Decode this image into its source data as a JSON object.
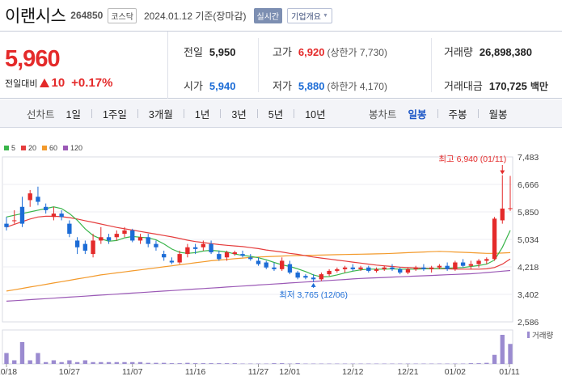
{
  "header": {
    "name": "이랜시스",
    "code": "264850",
    "market": "코스닥",
    "date_text": "2024.01.12 기준(장마감)",
    "realtime": "실시간",
    "company_info": "기업개요"
  },
  "price": {
    "current": "5,960",
    "change_label": "전일대비",
    "change_amount": "10",
    "change_pct": "+0.17%"
  },
  "stats": {
    "prev_close": {
      "label": "전일",
      "value": "5,950"
    },
    "high": {
      "label": "고가",
      "value": "6,920",
      "sub": "(상한가 7,730)"
    },
    "volume": {
      "label": "거래량",
      "value": "26,898,380"
    },
    "open": {
      "label": "시가",
      "value": "5,940"
    },
    "low": {
      "label": "저가",
      "value": "5,880",
      "sub": "(하한가 4,170)"
    },
    "amount": {
      "label": "거래대금",
      "value": "170,725",
      "unit": "백만"
    }
  },
  "tabs": {
    "line_label": "선차트",
    "line_tabs": [
      "1일",
      "1주일",
      "3개월",
      "1년",
      "3년",
      "5년",
      "10년"
    ],
    "candle_label": "봉차트",
    "candle_tabs": [
      "일봉",
      "주봉",
      "월봉"
    ],
    "active_candle": "일봉"
  },
  "colors": {
    "up": "#e42a2a",
    "down": "#1c6cd6",
    "ma5": "#39b54a",
    "ma20": "#e53d3d",
    "ma60": "#f39a2b",
    "ma120": "#9b59b6"
  },
  "chart_data": {
    "type": "candlestick",
    "legend": [
      {
        "name": "5",
        "color": "#39b54a"
      },
      {
        "name": "20",
        "color": "#e53d3d"
      },
      {
        "name": "60",
        "color": "#f39a2b"
      },
      {
        "name": "120",
        "color": "#9b59b6"
      }
    ],
    "y_ticks": [
      "7,483",
      "6,666",
      "5,850",
      "5,034",
      "4,218",
      "3,402",
      "2,586"
    ],
    "ylim": [
      2586,
      7483
    ],
    "x_ticks": [
      "10/18",
      "10/27",
      "11/07",
      "11/16",
      "11/27",
      "12/01",
      "12/12",
      "12/21",
      "01/02",
      "01/11"
    ],
    "high_annotation": "최고 6,940 (01/11)",
    "low_annotation": "최저 3,765 (12/06)",
    "volume_label": "거래량",
    "candles": [
      [
        5500,
        5700,
        5300,
        5400
      ],
      [
        5600,
        5900,
        5500,
        5600
      ],
      [
        6000,
        6300,
        5400,
        5500
      ],
      [
        6200,
        6500,
        6000,
        6400
      ],
      [
        6300,
        6600,
        6050,
        6150
      ],
      [
        6000,
        6100,
        5800,
        5900
      ],
      [
        5700,
        6000,
        5600,
        5800
      ],
      [
        5800,
        5900,
        5600,
        5700
      ],
      [
        5500,
        5600,
        5100,
        5200
      ],
      [
        5000,
        5100,
        4600,
        4800
      ],
      [
        4900,
        5000,
        4600,
        4700
      ],
      [
        4600,
        5200,
        4500,
        5000
      ],
      [
        5000,
        5400,
        4900,
        5100
      ],
      [
        5100,
        5200,
        4900,
        5000
      ],
      [
        5100,
        5300,
        5000,
        5200
      ],
      [
        5200,
        5400,
        5100,
        5300
      ],
      [
        5300,
        5350,
        4950,
        5000
      ],
      [
        5000,
        5200,
        4900,
        5100
      ],
      [
        5100,
        5200,
        4800,
        4900
      ],
      [
        4900,
        5000,
        4700,
        4800
      ],
      [
        4600,
        4700,
        4400,
        4500
      ],
      [
        4400,
        4500,
        4300,
        4350
      ],
      [
        4350,
        4700,
        4300,
        4600
      ],
      [
        4600,
        4900,
        4500,
        4800
      ],
      [
        4800,
        4900,
        4600,
        4750
      ],
      [
        4800,
        5000,
        4700,
        4900
      ],
      [
        4900,
        5000,
        4600,
        4650
      ],
      [
        4600,
        4700,
        4400,
        4450
      ],
      [
        4500,
        4700,
        4400,
        4650
      ],
      [
        4600,
        4700,
        4550,
        4650
      ],
      [
        4600,
        4700,
        4500,
        4550
      ],
      [
        4500,
        4600,
        4400,
        4450
      ],
      [
        4400,
        4500,
        4250,
        4300
      ],
      [
        4350,
        4400,
        4150,
        4200
      ],
      [
        4200,
        4350,
        4100,
        4150
      ],
      [
        4150,
        4500,
        4100,
        4400
      ],
      [
        4300,
        4400,
        4000,
        4050
      ],
      [
        4050,
        4100,
        3850,
        3900
      ],
      [
        3950,
        4000,
        3850,
        3900
      ],
      [
        3900,
        4000,
        3765,
        3850
      ],
      [
        3850,
        4050,
        3800,
        4000
      ],
      [
        4000,
        4150,
        3950,
        4100
      ],
      [
        4100,
        4200,
        4050,
        4150
      ],
      [
        4150,
        4250,
        4050,
        4200
      ],
      [
        4200,
        4300,
        4100,
        4150
      ],
      [
        4150,
        4250,
        4100,
        4200
      ],
      [
        4200,
        4250,
        4050,
        4100
      ],
      [
        4100,
        4200,
        4050,
        4150
      ],
      [
        4150,
        4250,
        4100,
        4200
      ],
      [
        4200,
        4300,
        4100,
        4150
      ],
      [
        4150,
        4200,
        4000,
        4050
      ],
      [
        4050,
        4200,
        4000,
        4150
      ],
      [
        4150,
        4250,
        4100,
        4200
      ],
      [
        4200,
        4300,
        4100,
        4150
      ],
      [
        4150,
        4250,
        4050,
        4200
      ],
      [
        4200,
        4300,
        4150,
        4250
      ],
      [
        4250,
        4350,
        4100,
        4150
      ],
      [
        4150,
        4400,
        4100,
        4350
      ],
      [
        4350,
        4450,
        4200,
        4250
      ],
      [
        4250,
        4400,
        4150,
        4300
      ],
      [
        4300,
        4450,
        4200,
        4400
      ],
      [
        4400,
        4500,
        4300,
        4450
      ],
      [
        4450,
        5700,
        4400,
        5650
      ],
      [
        5600,
        6940,
        5500,
        5950
      ],
      [
        5940,
        6920,
        5880,
        5960
      ]
    ],
    "ma5": [
      5700,
      5750,
      5800,
      5850,
      5900,
      5950,
      6000,
      5950,
      5800,
      5600,
      5350,
      5150,
      5050,
      4980,
      5000,
      5080,
      5120,
      5100,
      5080,
      5020,
      4900,
      4750,
      4650,
      4620,
      4640,
      4690,
      4710,
      4690,
      4660,
      4600,
      4560,
      4530,
      4490,
      4430,
      4350,
      4280,
      4230,
      4160,
      4080,
      3980,
      3920,
      3930,
      3980,
      4040,
      4090,
      4130,
      4150,
      4150,
      4150,
      4160,
      4150,
      4150,
      4150,
      4160,
      4160,
      4170,
      4180,
      4190,
      4200,
      4230,
      4260,
      4300,
      4420,
      4800,
      5300
    ],
    "ma20": [
      5400,
      5480,
      5560,
      5640,
      5700,
      5720,
      5720,
      5710,
      5680,
      5640,
      5590,
      5540,
      5490,
      5440,
      5390,
      5350,
      5310,
      5270,
      5230,
      5190,
      5150,
      5110,
      5060,
      5010,
      4970,
      4940,
      4910,
      4880,
      4860,
      4840,
      4820,
      4790,
      4760,
      4720,
      4690,
      4660,
      4620,
      4590,
      4550,
      4510,
      4480,
      4450,
      4420,
      4390,
      4360,
      4330,
      4300,
      4270,
      4250,
      4230,
      4210,
      4200,
      4190,
      4180,
      4170,
      4160,
      4160,
      4150,
      4150,
      4150,
      4150,
      4160,
      4200,
      4300,
      4450
    ],
    "ma60": [
      3500,
      3540,
      3580,
      3620,
      3660,
      3700,
      3740,
      3780,
      3820,
      3860,
      3900,
      3940,
      3980,
      4010,
      4040,
      4070,
      4100,
      4130,
      4160,
      4190,
      4220,
      4250,
      4280,
      4310,
      4340,
      4370,
      4400,
      4420,
      4440,
      4460,
      4480,
      4500,
      4510,
      4520,
      4530,
      4540,
      4550,
      4555,
      4560,
      4565,
      4570,
      4575,
      4580,
      4585,
      4590,
      4595,
      4600,
      4605,
      4610,
      4620,
      4630,
      4640,
      4650,
      4660,
      4670,
      4680,
      4670,
      4660,
      4650,
      4640,
      4630,
      4620,
      4620,
      4630,
      4640
    ],
    "ma120": [
      3200,
      3215,
      3230,
      3245,
      3260,
      3275,
      3290,
      3305,
      3320,
      3335,
      3350,
      3365,
      3380,
      3395,
      3410,
      3425,
      3440,
      3455,
      3470,
      3485,
      3500,
      3515,
      3530,
      3545,
      3560,
      3575,
      3590,
      3605,
      3620,
      3635,
      3650,
      3665,
      3680,
      3695,
      3710,
      3725,
      3740,
      3755,
      3770,
      3785,
      3800,
      3815,
      3830,
      3845,
      3860,
      3875,
      3885,
      3895,
      3905,
      3915,
      3925,
      3935,
      3945,
      3955,
      3965,
      3975,
      3985,
      3995,
      4005,
      4015,
      4030,
      4050,
      4070,
      4090,
      4110
    ],
    "volumes": [
      3,
      1,
      6,
      1,
      3,
      0.5,
      1,
      0.5,
      1,
      0.5,
      1,
      0.5,
      0.5,
      0.5,
      0.5,
      0.5,
      0.5,
      0.5,
      0.3,
      0.3,
      0.3,
      0.2,
      0.2,
      0.3,
      0.2,
      0.2,
      0.2,
      0.2,
      0.2,
      0.2,
      0.1,
      0.1,
      0.1,
      0.1,
      0.2,
      0.2,
      0.1,
      0.2,
      0.1,
      0.1,
      0.1,
      0.1,
      0.1,
      0.1,
      0.1,
      0.1,
      0.1,
      0.1,
      0.1,
      0.1,
      0.1,
      0.1,
      0.1,
      0.1,
      0.1,
      0.1,
      0.1,
      0.1,
      0.1,
      0.2,
      0.2,
      0.3,
      2.5,
      8,
      5.5
    ]
  }
}
